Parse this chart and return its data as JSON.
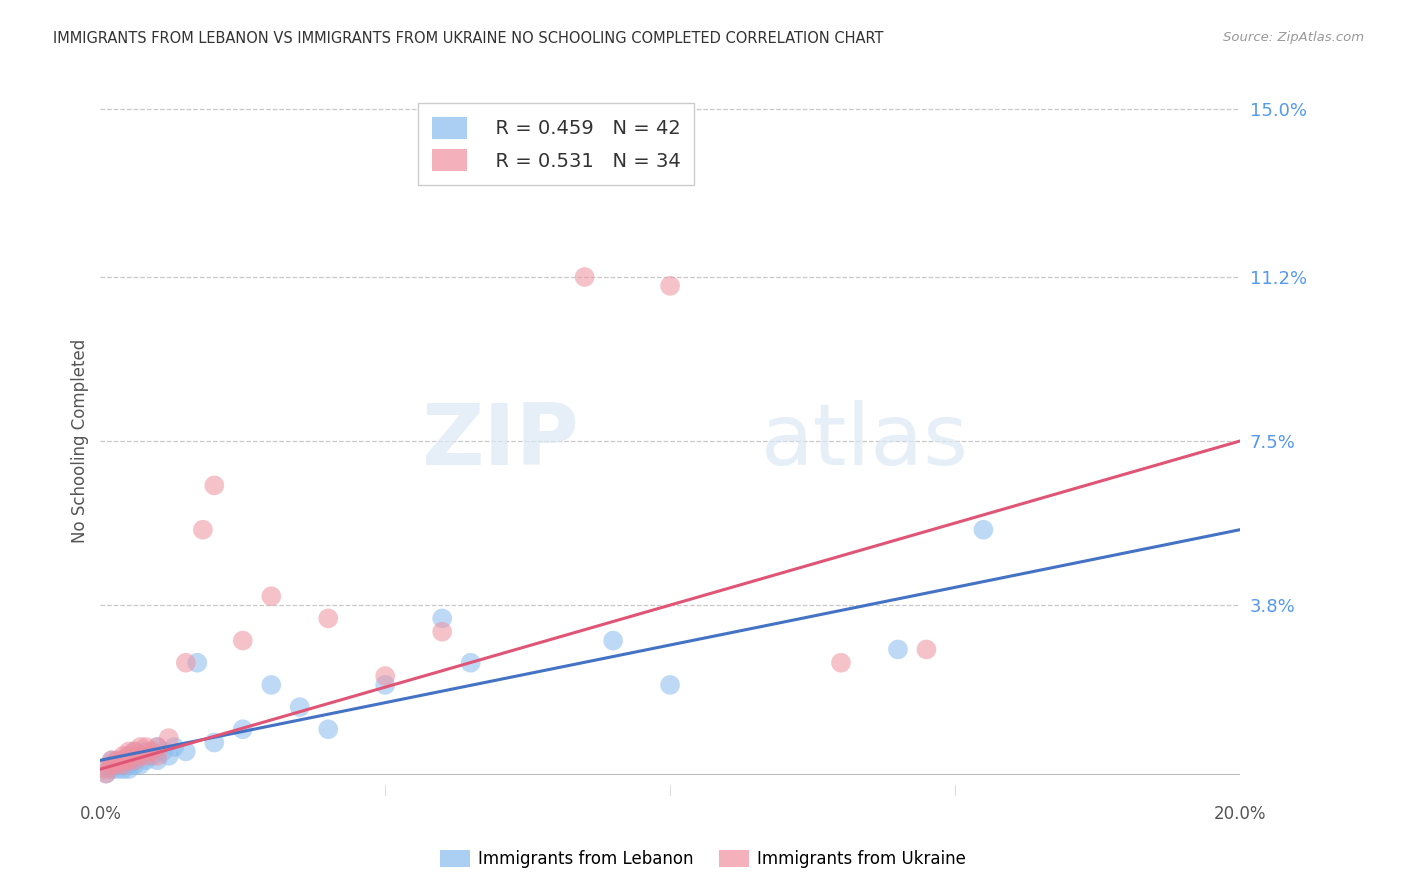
{
  "title": "IMMIGRANTS FROM LEBANON VS IMMIGRANTS FROM UKRAINE NO SCHOOLING COMPLETED CORRELATION CHART",
  "source": "Source: ZipAtlas.com",
  "ylabel": "No Schooling Completed",
  "xlim": [
    0.0,
    0.2
  ],
  "ylim": [
    -0.005,
    0.155
  ],
  "xticks": [
    0.0,
    0.05,
    0.1,
    0.15,
    0.2
  ],
  "xticklabels": [
    "0.0%",
    "",
    "",
    "",
    "20.0%"
  ],
  "yticks_right": [
    0.038,
    0.075,
    0.112,
    0.15
  ],
  "yticklabels_right": [
    "3.8%",
    "7.5%",
    "11.2%",
    "15.0%"
  ],
  "lebanon_color": "#88bbee",
  "ukraine_color": "#f090a0",
  "lebanon_line_color": "#4472c4",
  "ukraine_line_color": "#e05575",
  "lebanon_label": "Immigrants from Lebanon",
  "ukraine_label": "Immigrants from Ukraine",
  "watermark_zip": "ZIP",
  "watermark_atlas": "atlas",
  "legend_r_label_lebanon": "R = 0.459",
  "legend_n_label_lebanon": "N = 42",
  "legend_r_label_ukraine": "R = 0.531",
  "legend_n_label_ukraine": "N = 34",
  "lebanon_x": [
    0.001,
    0.001,
    0.002,
    0.002,
    0.002,
    0.003,
    0.003,
    0.003,
    0.004,
    0.004,
    0.004,
    0.005,
    0.005,
    0.005,
    0.005,
    0.006,
    0.006,
    0.006,
    0.007,
    0.007,
    0.008,
    0.008,
    0.009,
    0.01,
    0.01,
    0.011,
    0.012,
    0.013,
    0.015,
    0.017,
    0.02,
    0.025,
    0.03,
    0.035,
    0.04,
    0.05,
    0.06,
    0.065,
    0.09,
    0.1,
    0.14,
    0.155
  ],
  "lebanon_y": [
    0.0,
    0.001,
    0.001,
    0.002,
    0.003,
    0.001,
    0.002,
    0.003,
    0.001,
    0.002,
    0.003,
    0.001,
    0.002,
    0.003,
    0.004,
    0.002,
    0.003,
    0.005,
    0.002,
    0.004,
    0.003,
    0.005,
    0.004,
    0.003,
    0.006,
    0.005,
    0.004,
    0.006,
    0.005,
    0.025,
    0.007,
    0.01,
    0.02,
    0.015,
    0.01,
    0.02,
    0.035,
    0.025,
    0.03,
    0.02,
    0.028,
    0.055
  ],
  "ukraine_x": [
    0.001,
    0.001,
    0.002,
    0.002,
    0.003,
    0.003,
    0.004,
    0.004,
    0.004,
    0.005,
    0.005,
    0.005,
    0.006,
    0.006,
    0.007,
    0.007,
    0.008,
    0.008,
    0.009,
    0.01,
    0.01,
    0.012,
    0.015,
    0.018,
    0.02,
    0.025,
    0.03,
    0.04,
    0.05,
    0.06,
    0.085,
    0.1,
    0.13,
    0.145
  ],
  "ukraine_y": [
    0.0,
    0.001,
    0.002,
    0.003,
    0.002,
    0.003,
    0.002,
    0.003,
    0.004,
    0.003,
    0.004,
    0.005,
    0.003,
    0.005,
    0.004,
    0.006,
    0.004,
    0.006,
    0.005,
    0.004,
    0.006,
    0.008,
    0.025,
    0.055,
    0.065,
    0.03,
    0.04,
    0.035,
    0.022,
    0.032,
    0.112,
    0.11,
    0.025,
    0.028
  ],
  "leb_line_x0": 0.0,
  "leb_line_y0": 0.003,
  "leb_line_x1": 0.2,
  "leb_line_y1": 0.055,
  "ukr_line_x0": 0.0,
  "ukr_line_y0": 0.001,
  "ukr_line_x1": 0.2,
  "ukr_line_y1": 0.075
}
